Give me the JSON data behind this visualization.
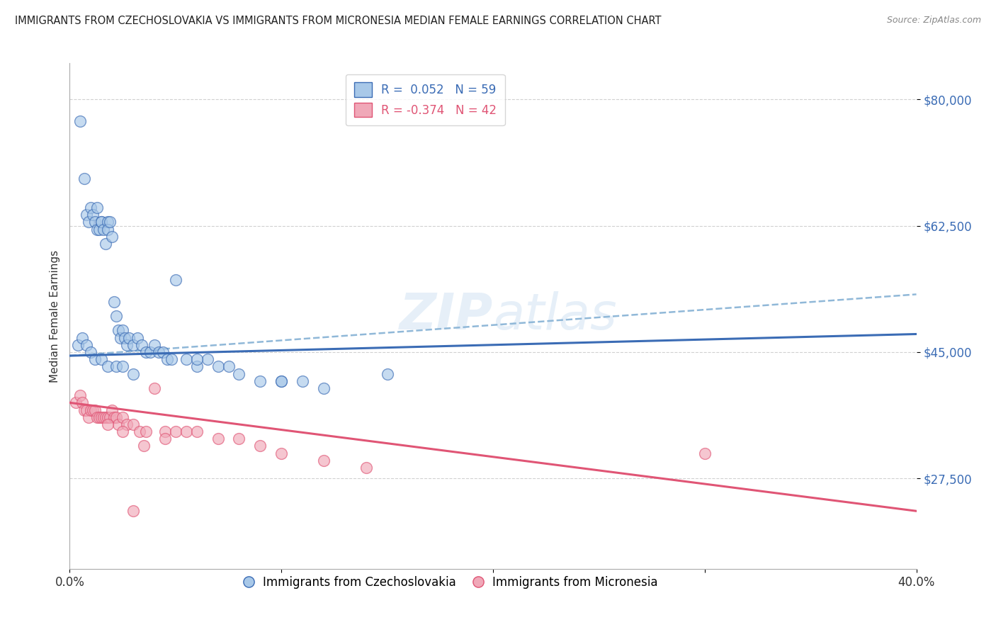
{
  "title": "IMMIGRANTS FROM CZECHOSLOVAKIA VS IMMIGRANTS FROM MICRONESIA MEDIAN FEMALE EARNINGS CORRELATION CHART",
  "source": "Source: ZipAtlas.com",
  "ylabel": "Median Female Earnings",
  "xlim": [
    0.0,
    0.4
  ],
  "ylim": [
    15000,
    85000
  ],
  "yticks": [
    27500,
    45000,
    62500,
    80000
  ],
  "ytick_labels": [
    "$27,500",
    "$45,000",
    "$62,500",
    "$80,000"
  ],
  "xticks": [
    0.0,
    0.1,
    0.2,
    0.3,
    0.4
  ],
  "xtick_labels": [
    "0.0%",
    "",
    "",
    "",
    "40.0%"
  ],
  "blue_color": "#a8c8e8",
  "pink_color": "#f0a8b8",
  "blue_line_color": "#3b6cb5",
  "pink_line_color": "#e05575",
  "dashed_line_color": "#90b8d8",
  "watermark": "ZIPatlas",
  "blue_scatter_x": [
    0.005,
    0.007,
    0.008,
    0.009,
    0.01,
    0.011,
    0.012,
    0.013,
    0.013,
    0.014,
    0.015,
    0.015,
    0.016,
    0.017,
    0.018,
    0.018,
    0.019,
    0.02,
    0.021,
    0.022,
    0.023,
    0.024,
    0.025,
    0.026,
    0.027,
    0.028,
    0.03,
    0.032,
    0.034,
    0.036,
    0.038,
    0.04,
    0.042,
    0.044,
    0.046,
    0.048,
    0.05,
    0.055,
    0.06,
    0.065,
    0.07,
    0.075,
    0.08,
    0.09,
    0.1,
    0.11,
    0.12,
    0.004,
    0.006,
    0.008,
    0.01,
    0.012,
    0.015,
    0.018,
    0.022,
    0.025,
    0.03,
    0.06,
    0.1,
    0.15
  ],
  "blue_scatter_y": [
    77000,
    69000,
    64000,
    63000,
    65000,
    64000,
    63000,
    62000,
    65000,
    62000,
    63000,
    63000,
    62000,
    60000,
    63000,
    62000,
    63000,
    61000,
    52000,
    50000,
    48000,
    47000,
    48000,
    47000,
    46000,
    47000,
    46000,
    47000,
    46000,
    45000,
    45000,
    46000,
    45000,
    45000,
    44000,
    44000,
    55000,
    44000,
    43000,
    44000,
    43000,
    43000,
    42000,
    41000,
    41000,
    41000,
    40000,
    46000,
    47000,
    46000,
    45000,
    44000,
    44000,
    43000,
    43000,
    43000,
    42000,
    44000,
    41000,
    42000
  ],
  "pink_scatter_x": [
    0.003,
    0.005,
    0.006,
    0.007,
    0.008,
    0.009,
    0.01,
    0.011,
    0.012,
    0.013,
    0.014,
    0.015,
    0.016,
    0.017,
    0.018,
    0.019,
    0.02,
    0.021,
    0.022,
    0.023,
    0.025,
    0.027,
    0.03,
    0.033,
    0.036,
    0.04,
    0.045,
    0.05,
    0.055,
    0.06,
    0.07,
    0.08,
    0.09,
    0.1,
    0.12,
    0.14,
    0.018,
    0.025,
    0.035,
    0.045,
    0.3,
    0.03
  ],
  "pink_scatter_y": [
    38000,
    39000,
    38000,
    37000,
    37000,
    36000,
    37000,
    37000,
    37000,
    36000,
    36000,
    36000,
    36000,
    36000,
    36000,
    36000,
    37000,
    36000,
    36000,
    35000,
    36000,
    35000,
    35000,
    34000,
    34000,
    40000,
    34000,
    34000,
    34000,
    34000,
    33000,
    33000,
    32000,
    31000,
    30000,
    29000,
    35000,
    34000,
    32000,
    33000,
    31000,
    23000
  ],
  "blue_trend_x0": 0.0,
  "blue_trend_y0": 44500,
  "blue_trend_x1": 0.4,
  "blue_trend_y1": 47500,
  "pink_trend_x0": 0.0,
  "pink_trend_y0": 38000,
  "pink_trend_x1": 0.4,
  "pink_trend_y1": 23000,
  "dashed_trend_x0": 0.0,
  "dashed_trend_y0": 44500,
  "dashed_trend_x1": 0.4,
  "dashed_trend_y1": 53000
}
